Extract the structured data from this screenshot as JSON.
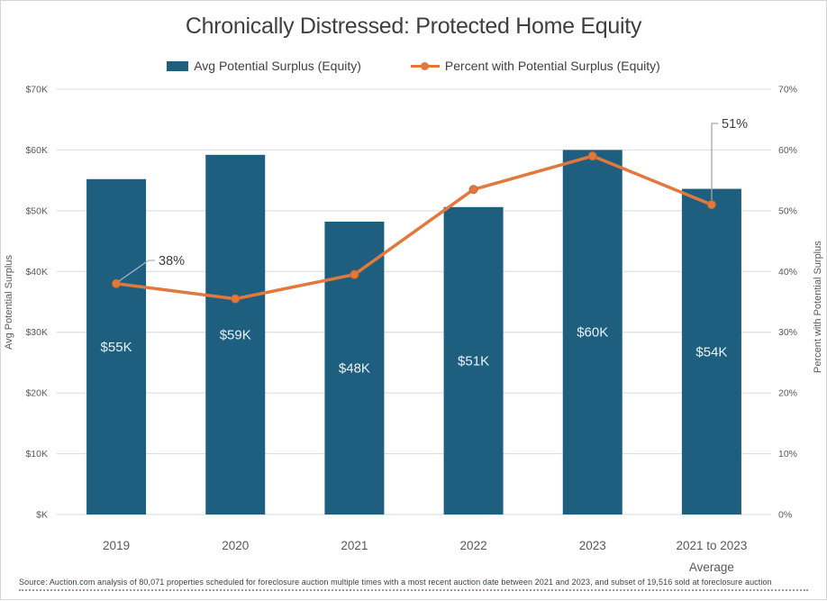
{
  "title": "Chronically Distressed: Protected Home Equity",
  "legend": {
    "bar_label": "Avg Potential Surplus (Equity)",
    "line_label": "Percent with Potential Surplus (Equity)"
  },
  "colors": {
    "bar": "#1E5F7F",
    "line": "#E1793D",
    "marker_edge": "#C9682B",
    "grid": "#D9D9D9",
    "tick_text": "#595959",
    "bar_label_text": "#EAF2F6",
    "annotation_text": "#3f3f3f",
    "leader_38": "#9FB6C7",
    "leader_51": "#A6A6A6"
  },
  "chart_data": {
    "type": "bar",
    "subtype": "combo bar + line, dual axis",
    "categories": [
      "2019",
      "2020",
      "2021",
      "2022",
      "2023",
      "2021 to 2023\nAverage"
    ],
    "series": [
      {
        "name": "Avg Potential Surplus (Equity)",
        "type": "bar",
        "axis": "left",
        "values_thousands": [
          55.2,
          59.2,
          48.2,
          50.6,
          60.0,
          53.6
        ],
        "labels": [
          "$55K",
          "$59K",
          "$48K",
          "$51K",
          "$60K",
          "$54K"
        ]
      },
      {
        "name": "Percent with Potential Surplus (Equity)",
        "type": "line",
        "axis": "right",
        "values_percent": [
          38,
          35.5,
          39.5,
          53.5,
          59,
          51
        ]
      }
    ],
    "annotations": [
      {
        "text": "38%",
        "series": "line",
        "category": "2019"
      },
      {
        "text": "51%",
        "series": "line",
        "category": "2021 to 2023 Average"
      }
    ],
    "left_axis": {
      "title": "Avg Potential Surplus",
      "ticks": [
        "$70K",
        "$60K",
        "$50K",
        "$40K",
        "$30K",
        "$20K",
        "$10K",
        "$K"
      ],
      "max": 70000,
      "min": 0
    },
    "right_axis": {
      "title": "Percent with Potential Surplus",
      "ticks": [
        "70%",
        "60%",
        "50%",
        "40%",
        "30%",
        "20%",
        "10%",
        "0%"
      ],
      "max": 0.7,
      "min": 0
    },
    "grid": "horizontal only",
    "legend_position": "top"
  },
  "source": "Source: Auction.com analysis of 80,071 properties scheduled for foreclosure auction multiple times with a most recent auction date between 2021 and 2023, and subset of 19,516 sold at foreclosure auction"
}
